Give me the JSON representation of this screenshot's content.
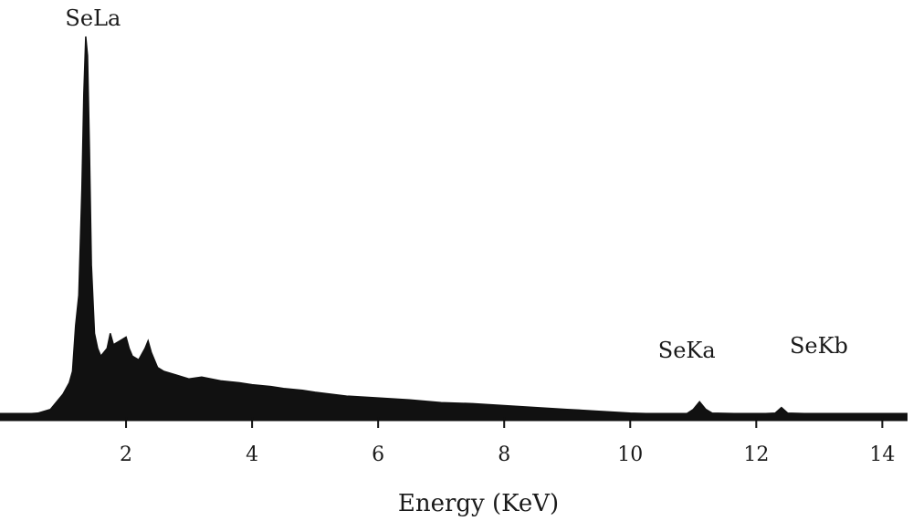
{
  "chart_data": {
    "type": "area",
    "title": "",
    "xlabel": "Energy (KeV)",
    "ylabel": "",
    "x_ticks": [
      2,
      4,
      6,
      8,
      10,
      12,
      14
    ],
    "xlim": [
      0,
      14.4
    ],
    "ylim": [
      0,
      100
    ],
    "grid": false,
    "legend": "none",
    "colors": {
      "spectrum": "#111111",
      "axis": "#111111",
      "text": "#1a1a1a"
    },
    "series": [
      {
        "points": [
          [
            0.0,
            0.5
          ],
          [
            0.4,
            0.8
          ],
          [
            0.6,
            1.0
          ],
          [
            0.8,
            2.0
          ],
          [
            0.9,
            4.0
          ],
          [
            1.0,
            6.0
          ],
          [
            1.1,
            9.0
          ],
          [
            1.15,
            12.0
          ],
          [
            1.2,
            24.0
          ],
          [
            1.25,
            32.0
          ],
          [
            1.3,
            60.0
          ],
          [
            1.33,
            85.0
          ],
          [
            1.36,
            100.0
          ],
          [
            1.39,
            95.0
          ],
          [
            1.42,
            70.0
          ],
          [
            1.45,
            40.0
          ],
          [
            1.5,
            22.0
          ],
          [
            1.55,
            18.0
          ],
          [
            1.6,
            16.0
          ],
          [
            1.7,
            18.0
          ],
          [
            1.75,
            22.0
          ],
          [
            1.8,
            19.0
          ],
          [
            1.9,
            20.0
          ],
          [
            2.0,
            21.0
          ],
          [
            2.05,
            18.0
          ],
          [
            2.1,
            16.0
          ],
          [
            2.2,
            15.0
          ],
          [
            2.3,
            18.0
          ],
          [
            2.35,
            20.0
          ],
          [
            2.4,
            17.0
          ],
          [
            2.5,
            13.0
          ],
          [
            2.6,
            12.0
          ],
          [
            2.8,
            11.0
          ],
          [
            3.0,
            10.0
          ],
          [
            3.2,
            10.5
          ],
          [
            3.5,
            9.5
          ],
          [
            3.8,
            9.0
          ],
          [
            4.0,
            8.5
          ],
          [
            4.3,
            8.0
          ],
          [
            4.5,
            7.5
          ],
          [
            4.8,
            7.0
          ],
          [
            5.0,
            6.5
          ],
          [
            5.5,
            5.5
          ],
          [
            6.0,
            5.0
          ],
          [
            6.5,
            4.5
          ],
          [
            7.0,
            3.8
          ],
          [
            7.5,
            3.5
          ],
          [
            8.0,
            3.0
          ],
          [
            8.5,
            2.5
          ],
          [
            9.0,
            2.0
          ],
          [
            9.5,
            1.5
          ],
          [
            10.0,
            1.0
          ],
          [
            10.5,
            0.8
          ],
          [
            10.9,
            0.9
          ],
          [
            11.0,
            2.0
          ],
          [
            11.1,
            4.0
          ],
          [
            11.2,
            2.0
          ],
          [
            11.3,
            1.0
          ],
          [
            12.0,
            0.8
          ],
          [
            12.3,
            1.0
          ],
          [
            12.4,
            2.5
          ],
          [
            12.5,
            1.0
          ],
          [
            13.0,
            0.8
          ],
          [
            14.4,
            0.8
          ]
        ]
      }
    ],
    "annotations": [
      {
        "text": "SeLa",
        "x": 1.36,
        "y": 100
      },
      {
        "text": "SeKa",
        "x": 11.1,
        "y": 4.0
      },
      {
        "text": "SeKb",
        "x": 12.4,
        "y": 2.5
      }
    ]
  }
}
